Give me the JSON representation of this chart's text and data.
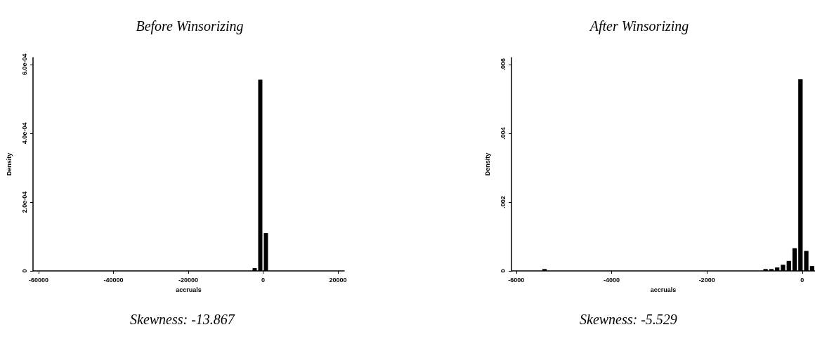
{
  "chart_data": [
    {
      "type": "histogram",
      "title": "Before Winsorizing",
      "xlabel": "accruals",
      "ylabel": "Density",
      "color": "#000000",
      "bins": [
        -3000,
        -1500,
        0,
        1500
      ],
      "values": [
        8e-06,
        0.000556,
        0.00011
      ],
      "xlim": [
        -61500,
        21700
      ],
      "xticks": [
        -60000,
        -40000,
        -20000,
        0,
        20000
      ],
      "ylim": [
        0,
        0.00062
      ],
      "yticks": [
        {
          "value": 0,
          "label": "0"
        },
        {
          "value": 0.0002,
          "label": "2.0e-04"
        },
        {
          "value": 0.0004,
          "label": "4.0e-04"
        },
        {
          "value": 0.0006,
          "label": "6.0e-04"
        }
      ],
      "grid": false,
      "annotations": [
        "Skewness: -13.867"
      ]
    },
    {
      "type": "histogram",
      "title": "After Winsorizing",
      "xlabel": "accruals",
      "ylabel": "Density",
      "color": "#000000",
      "bins": [
        -5466,
        -5344,
        -5222,
        -5100,
        -4978,
        -4856,
        -4734,
        -4612,
        -4490,
        -4368,
        -4246,
        -4124,
        -4002,
        -3880,
        -3758,
        -3636,
        -3514,
        -3392,
        -3270,
        -3148,
        -3026,
        -2904,
        -2782,
        -2660,
        -2538,
        -2416,
        -2294,
        -2172,
        -2050,
        -1928,
        -1806,
        -1684,
        -1562,
        -1440,
        -1318,
        -1196,
        -1074,
        -952,
        -830,
        -708,
        -586,
        -464,
        -342,
        -220,
        -98,
        24,
        146,
        268
      ],
      "values": [
        5.4e-05,
        0,
        0,
        0,
        0,
        0,
        0,
        0,
        0,
        0,
        0,
        0,
        0,
        0,
        0,
        0,
        0,
        0,
        0,
        0,
        0,
        0,
        0,
        0,
        0,
        0,
        0,
        0,
        0,
        0,
        0,
        0,
        0,
        0,
        0,
        0,
        0,
        0,
        5.5e-05,
        5.5e-05,
        0.0001,
        0.00018,
        0.00029,
        0.00066,
        0.00557,
        0.00058,
        0.00014
      ],
      "xlim": [
        -6100,
        268
      ],
      "xticks": [
        -6000,
        -4000,
        -2000,
        0
      ],
      "ylim": [
        0,
        0.0062
      ],
      "yticks": [
        {
          "value": 0,
          "label": "0"
        },
        {
          "value": 0.002,
          "label": ".002"
        },
        {
          "value": 0.004,
          "label": ".004"
        },
        {
          "value": 0.006,
          "label": ".006"
        }
      ],
      "grid": false,
      "annotations": [
        "Skewness: -5.529"
      ]
    }
  ]
}
